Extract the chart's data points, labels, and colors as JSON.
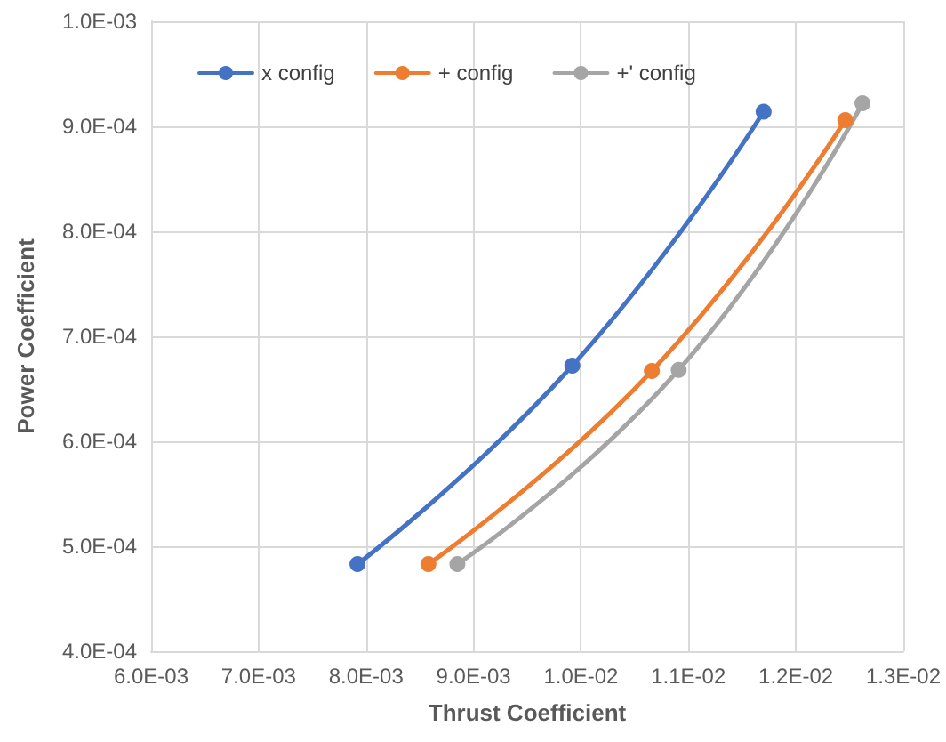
{
  "chart_data": {
    "type": "line",
    "xlabel": "Thrust Coefficient",
    "ylabel": "Power Coefficient",
    "xlim": [
      0.006,
      0.013
    ],
    "xticks": [
      {
        "value": 0.006,
        "label": "6.0E-03"
      },
      {
        "value": 0.007,
        "label": "7.0E-03"
      },
      {
        "value": 0.008,
        "label": "8.0E-03"
      },
      {
        "value": 0.009,
        "label": "9.0E-03"
      },
      {
        "value": 0.01,
        "label": "1.0E-02"
      },
      {
        "value": 0.011,
        "label": "1.1E-02"
      },
      {
        "value": 0.012,
        "label": "1.2E-02"
      },
      {
        "value": 0.013,
        "label": "1.3E-02"
      }
    ],
    "ylim": [
      0.0004,
      0.001
    ],
    "yticks": [
      {
        "value": 0.0004,
        "label": "4.0E-04"
      },
      {
        "value": 0.0005,
        "label": "5.0E-04"
      },
      {
        "value": 0.0006,
        "label": "6.0E-04"
      },
      {
        "value": 0.0007,
        "label": "7.0E-04"
      },
      {
        "value": 0.0008,
        "label": "8.0E-04"
      },
      {
        "value": 0.0009,
        "label": "9.0E-04"
      },
      {
        "value": 0.001,
        "label": "1.0E-03"
      }
    ],
    "grid": true,
    "legend": "top left",
    "marker": "circle",
    "line_style": "solid",
    "series": [
      {
        "name": "x config",
        "color": "#4472c4",
        "x": [
          0.00792,
          0.00992,
          0.0117
        ],
        "values": [
          0.000483,
          0.000672,
          0.000914
        ]
      },
      {
        "name": "+ config",
        "color": "#ed7d31",
        "x": [
          0.00858,
          0.01066,
          0.01246
        ],
        "values": [
          0.000483,
          0.000667,
          0.000906
        ]
      },
      {
        "name": "+' config",
        "color": "#a5a5a5",
        "x": [
          0.00885,
          0.01091,
          0.01262
        ],
        "values": [
          0.000483,
          0.000668,
          0.000922
        ]
      }
    ]
  }
}
